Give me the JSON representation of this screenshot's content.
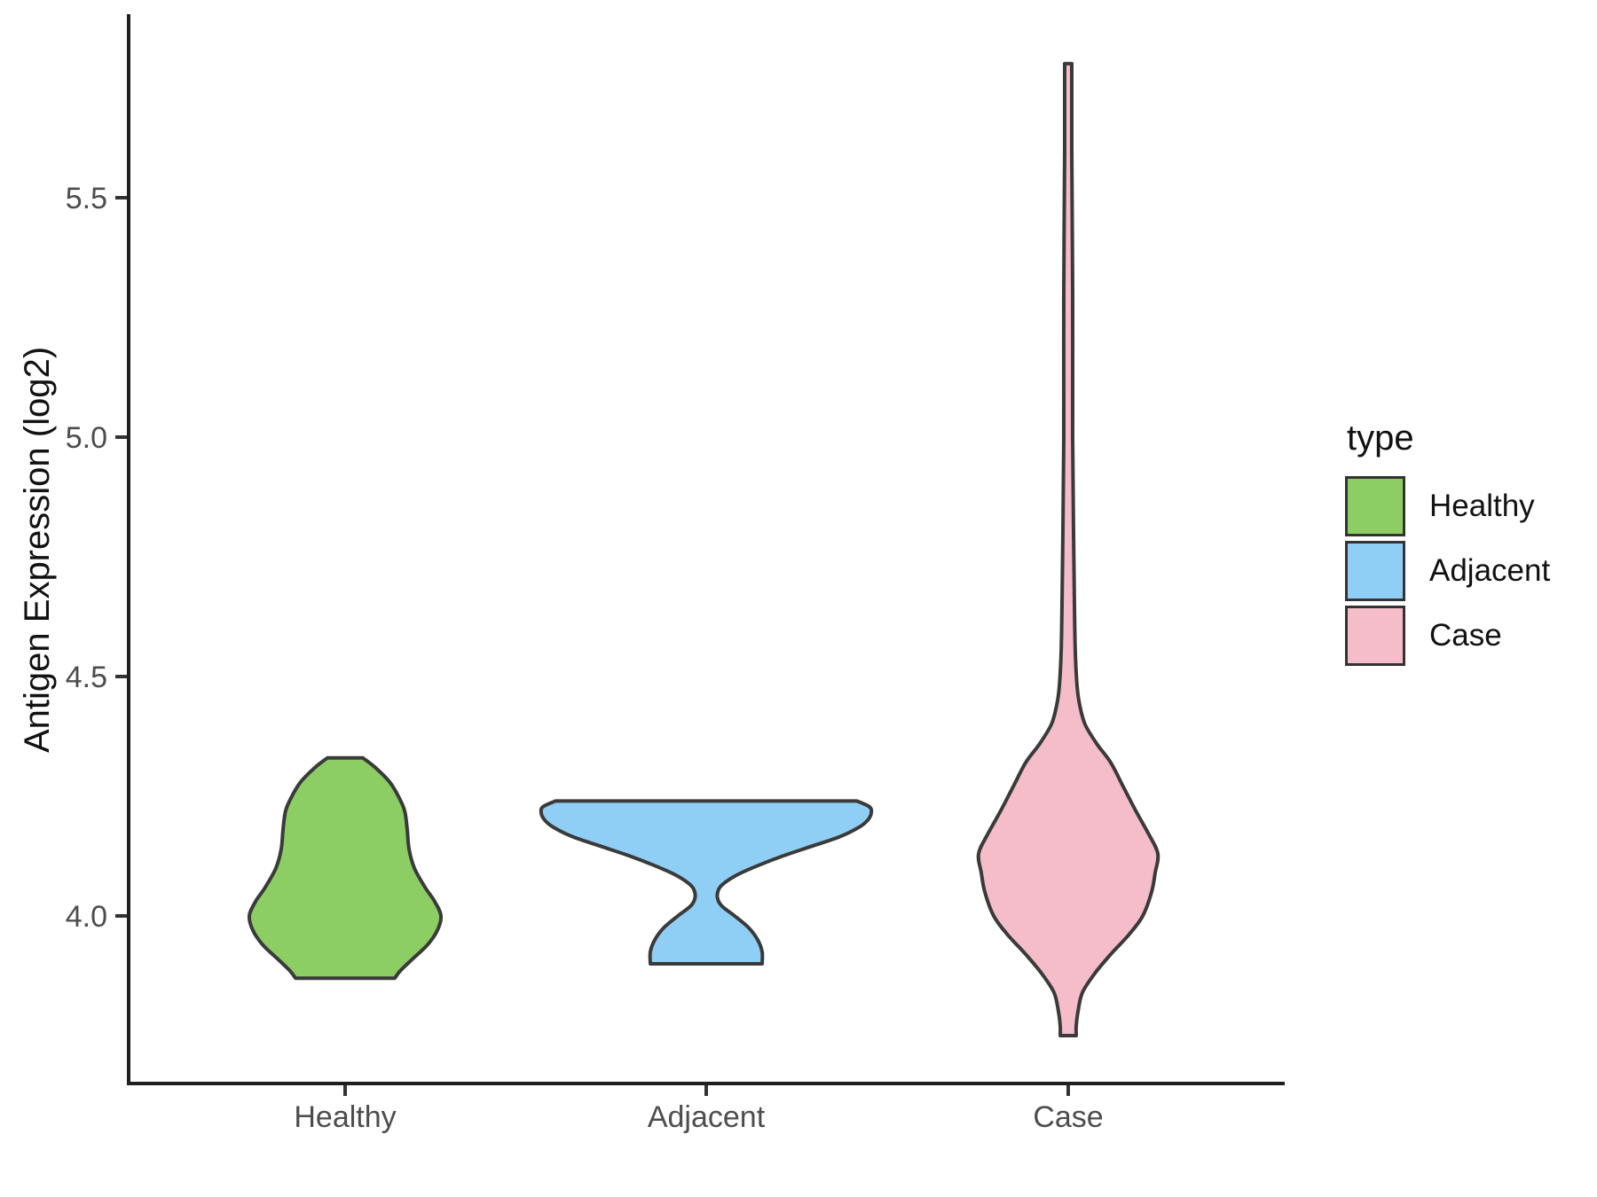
{
  "y_axis": {
    "label": "Antigen Expression (log2)",
    "ticks": [
      {
        "label": "5.5",
        "value": 5.5
      },
      {
        "label": "5.0",
        "value": 5.0
      },
      {
        "label": "4.5",
        "value": 4.5
      },
      {
        "label": "4.0",
        "value": 4.0
      }
    ]
  },
  "x_axis": {
    "categories": [
      "Healthy",
      "Adjacent",
      "Case"
    ]
  },
  "legend": {
    "title": "type",
    "entries": [
      {
        "label": "Healthy",
        "color": "#8CCE63"
      },
      {
        "label": "Adjacent",
        "color": "#90CFF5"
      },
      {
        "label": "Case",
        "color": "#F5BCC9"
      }
    ]
  },
  "colors": {
    "violin_outline": "#3A3A3A",
    "axis_line": "#1F1F1F",
    "tick_mark": "#333333",
    "tick_label": "#4D4D4D",
    "background": "#FFFFFF"
  },
  "chart_data": {
    "type": "violin",
    "title": "",
    "xlabel": "",
    "ylabel": "Antigen Expression (log2)",
    "categories": [
      "Healthy",
      "Adjacent",
      "Case"
    ],
    "ylim": [
      3.65,
      5.85
    ],
    "grid": false,
    "legend_position": "right",
    "series": [
      {
        "name": "Healthy",
        "color": "#8CCE63",
        "min": 3.87,
        "max": 4.33,
        "widest_at": 4.0,
        "profile": [
          [
            4.33,
            20
          ],
          [
            4.31,
            34
          ],
          [
            4.28,
            50
          ],
          [
            4.25,
            60
          ],
          [
            4.22,
            67
          ],
          [
            4.18,
            70
          ],
          [
            4.14,
            72
          ],
          [
            4.1,
            78
          ],
          [
            4.06,
            90
          ],
          [
            4.03,
            101
          ],
          [
            4.0,
            108
          ],
          [
            3.97,
            104
          ],
          [
            3.94,
            93
          ],
          [
            3.91,
            76
          ],
          [
            3.885,
            62
          ],
          [
            3.87,
            56
          ]
        ]
      },
      {
        "name": "Adjacent",
        "color": "#90CFF5",
        "min": 3.9,
        "max": 4.24,
        "widest_at": 4.21,
        "profile": [
          [
            4.24,
            170
          ],
          [
            4.228,
            184
          ],
          [
            4.215,
            186
          ],
          [
            4.2,
            182
          ],
          [
            4.185,
            172
          ],
          [
            4.165,
            150
          ],
          [
            4.145,
            118
          ],
          [
            4.125,
            86
          ],
          [
            4.105,
            58
          ],
          [
            4.085,
            34
          ],
          [
            4.065,
            18
          ],
          [
            4.05,
            13
          ],
          [
            4.035,
            13
          ],
          [
            4.02,
            18
          ],
          [
            4.0,
            32
          ],
          [
            3.975,
            48
          ],
          [
            3.95,
            58
          ],
          [
            3.925,
            63
          ],
          [
            3.9,
            63
          ]
        ]
      },
      {
        "name": "Case",
        "color": "#F5BCC9",
        "min": 3.75,
        "max": 5.78,
        "widest_at": 4.13,
        "profile": [
          [
            5.78,
            4
          ],
          [
            5.6,
            4
          ],
          [
            5.3,
            5
          ],
          [
            5.0,
            5
          ],
          [
            4.8,
            6
          ],
          [
            4.65,
            7
          ],
          [
            4.55,
            8
          ],
          [
            4.48,
            10
          ],
          [
            4.44,
            13
          ],
          [
            4.4,
            19
          ],
          [
            4.36,
            32
          ],
          [
            4.32,
            48
          ],
          [
            4.27,
            62
          ],
          [
            4.22,
            76
          ],
          [
            4.17,
            91
          ],
          [
            4.13,
            101
          ],
          [
            4.09,
            98
          ],
          [
            4.05,
            94
          ],
          [
            4.0,
            84
          ],
          [
            3.96,
            68
          ],
          [
            3.92,
            48
          ],
          [
            3.88,
            30
          ],
          [
            3.84,
            16
          ],
          [
            3.8,
            11
          ],
          [
            3.77,
            9
          ],
          [
            3.75,
            9
          ]
        ]
      }
    ]
  }
}
